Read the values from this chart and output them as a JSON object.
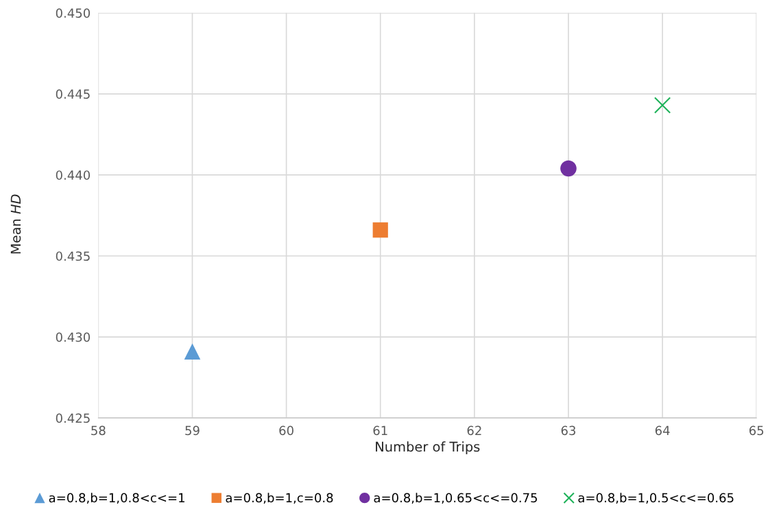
{
  "chart_data": {
    "type": "scatter",
    "xlabel": "Number of Trips",
    "ylabel": "Mean HD",
    "xlim": [
      58,
      65
    ],
    "xticks": [
      58,
      59,
      60,
      61,
      62,
      63,
      64,
      65
    ],
    "ylim": [
      0.425,
      0.45
    ],
    "yticks": [
      {
        "value": 0.425,
        "label": "0.425"
      },
      {
        "value": 0.43,
        "label": "0.430"
      },
      {
        "value": 0.435,
        "label": "0.435"
      },
      {
        "value": 0.44,
        "label": "0.440"
      },
      {
        "value": 0.445,
        "label": "0.445"
      },
      {
        "value": 0.45,
        "label": "0.450"
      }
    ],
    "grid": true,
    "legend": "bottom",
    "series": [
      {
        "name": "a=0.8,b=1,0.8<c<=1",
        "color": "#5b9bd5",
        "marker": "triangle",
        "x": [
          59
        ],
        "values": [
          0.4291
        ]
      },
      {
        "name": "a=0.8,b=1,c=0.8",
        "color": "#ed7d31",
        "marker": "square",
        "x": [
          61
        ],
        "values": [
          0.4366
        ]
      },
      {
        "name": "a=0.8,b=1,0.65<c<=0.75",
        "color": "#7030a0",
        "marker": "circle",
        "x": [
          63
        ],
        "values": [
          0.4404
        ]
      },
      {
        "name": "a=0.8,b=1,0.5<c<=0.65",
        "color": "#1fb25a",
        "marker": "cross",
        "x": [
          64
        ],
        "values": [
          0.4443
        ]
      }
    ]
  }
}
